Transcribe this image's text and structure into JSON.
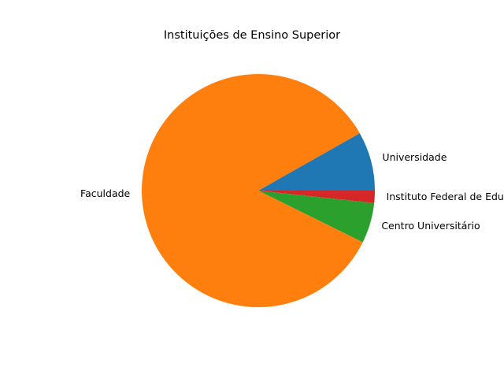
{
  "chart_data": {
    "type": "pie",
    "title": "Instituições de Ensino Superior",
    "categories": [
      "Universidade",
      "Faculdade",
      "Centro Universitário",
      "Instituto Federal de Educação"
    ],
    "values": [
      8.2,
      84.5,
      5.6,
      1.7
    ],
    "colors": [
      "#1f77b4",
      "#ff7f0e",
      "#2ca02c",
      "#d62728"
    ],
    "start_angle_deg": 0,
    "direction": "counterclockwise"
  }
}
